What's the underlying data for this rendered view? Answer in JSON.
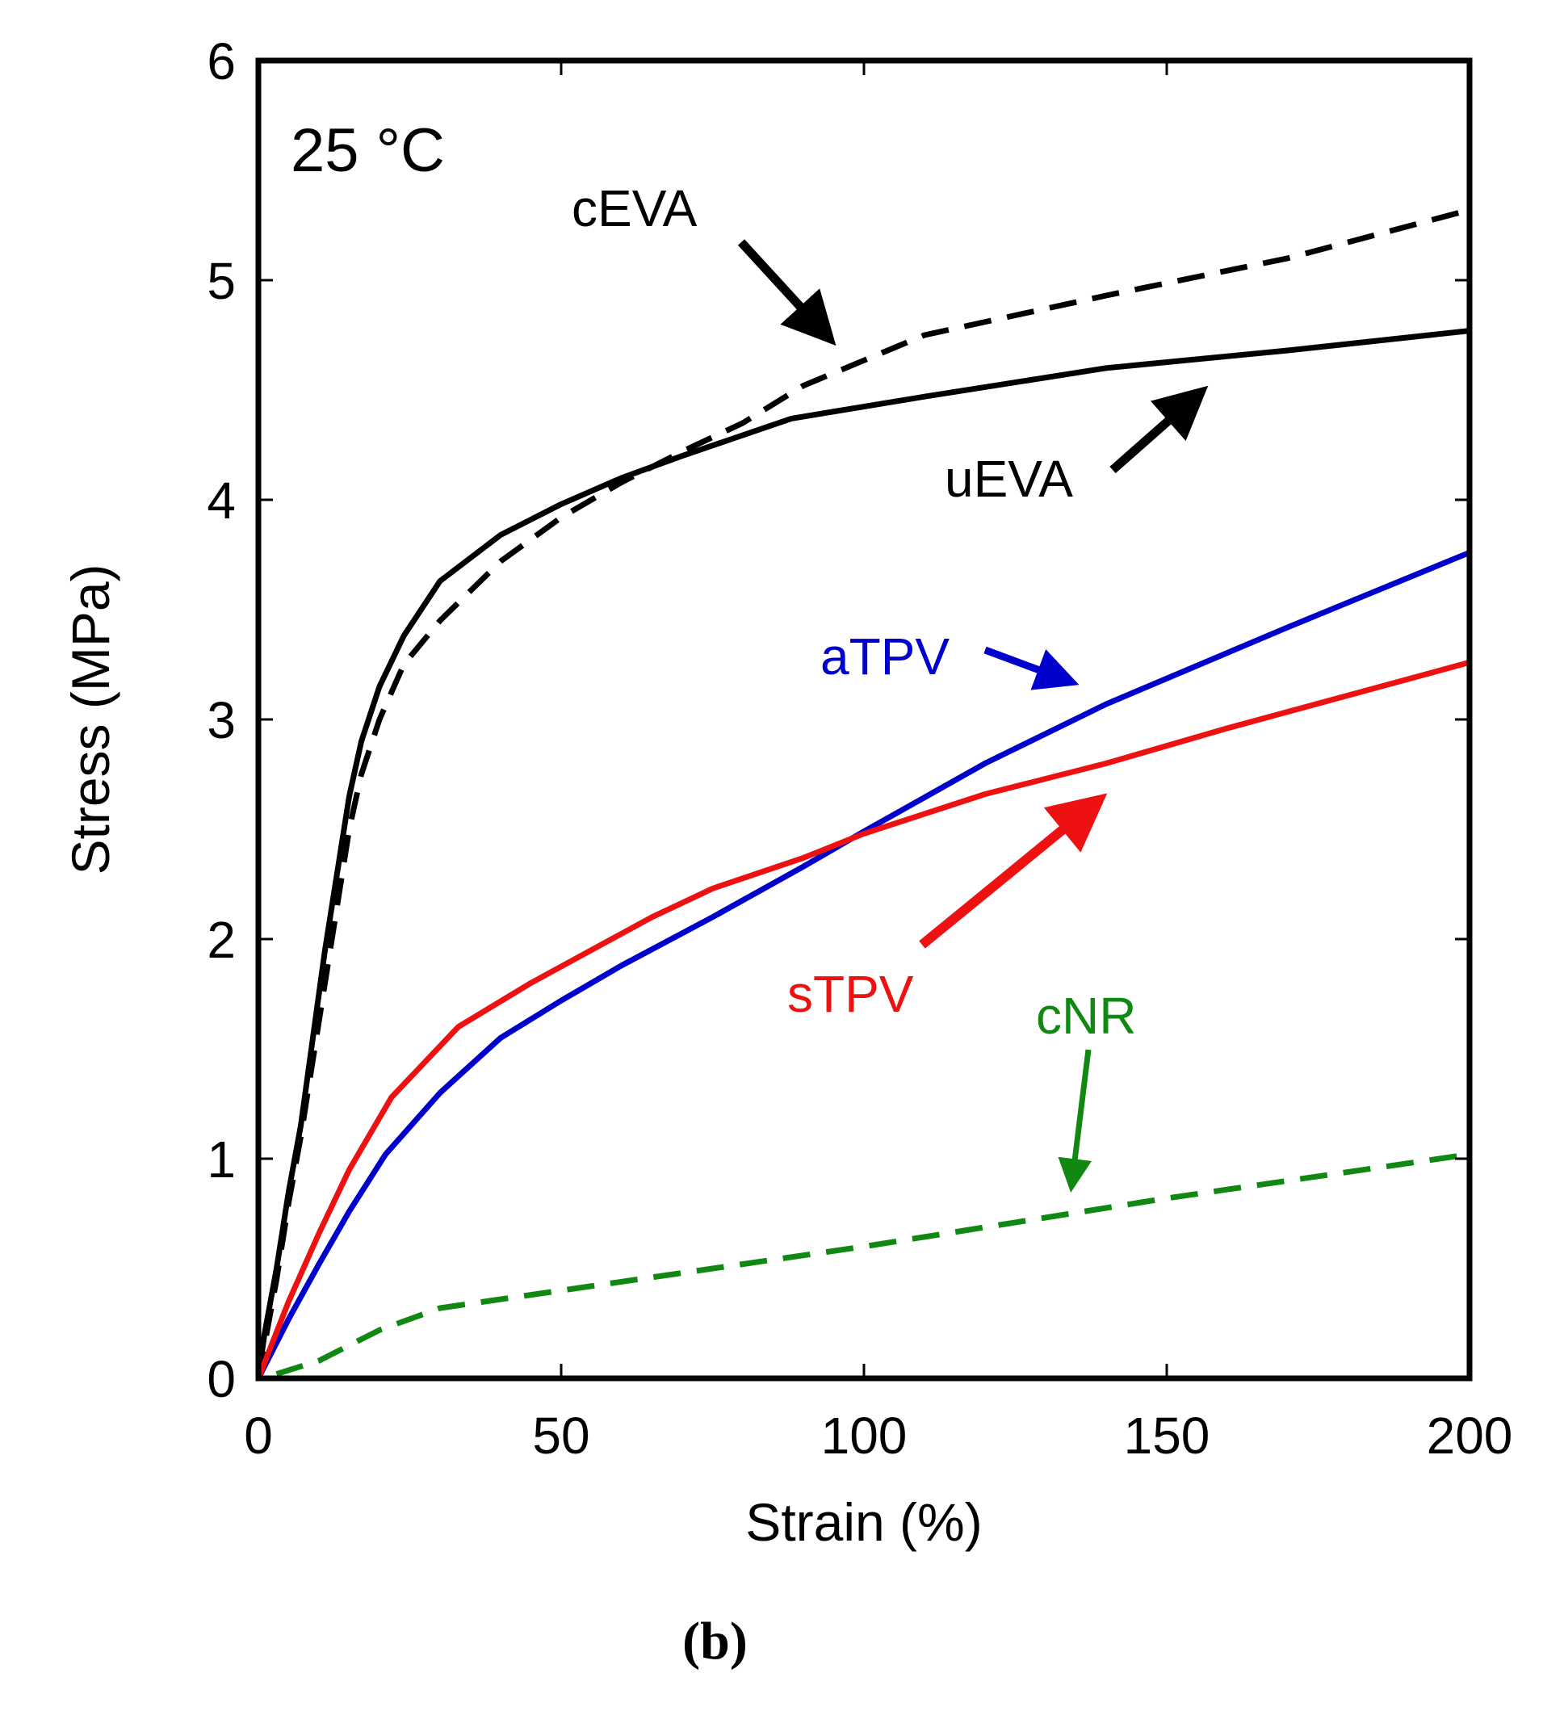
{
  "chart_data": {
    "type": "line",
    "title": "",
    "xlabel": "Strain (%)",
    "ylabel": "Stress (MPa)",
    "xlim": [
      0,
      200
    ],
    "ylim": [
      0,
      6
    ],
    "xticks": [
      0,
      50,
      100,
      150,
      200
    ],
    "yticks": [
      0,
      1,
      2,
      3,
      4,
      5,
      6
    ],
    "xtick_labels": [
      "0",
      "50",
      "100",
      "150",
      "200"
    ],
    "ytick_labels": [
      "0",
      "1",
      "2",
      "3",
      "4",
      "5",
      "6"
    ],
    "grid": false,
    "temperature_label": "25 °C",
    "panel_label": "(b)",
    "series": [
      {
        "name": "uEVA",
        "color": "#000000",
        "style": "solid",
        "x": [
          0,
          1,
          3,
          5,
          7,
          9,
          11,
          13,
          15,
          17,
          20,
          24,
          30,
          40,
          50,
          60,
          70,
          88,
          110,
          140,
          170,
          200
        ],
        "y": [
          0,
          0.2,
          0.5,
          0.85,
          1.15,
          1.55,
          1.95,
          2.3,
          2.65,
          2.9,
          3.15,
          3.38,
          3.63,
          3.84,
          3.98,
          4.1,
          4.2,
          4.37,
          4.47,
          4.6,
          4.68,
          4.77
        ]
      },
      {
        "name": "cEVA",
        "color": "#000000",
        "style": "dashed",
        "x": [
          0,
          1,
          3,
          5,
          7,
          9,
          11,
          13,
          15,
          17,
          20,
          24,
          30,
          40,
          50,
          60,
          70,
          80,
          90,
          110,
          140,
          170,
          200
        ],
        "y": [
          0,
          0.15,
          0.45,
          0.8,
          1.1,
          1.45,
          1.8,
          2.15,
          2.5,
          2.75,
          3.0,
          3.25,
          3.45,
          3.72,
          3.92,
          4.08,
          4.22,
          4.35,
          4.52,
          4.75,
          4.93,
          5.1,
          5.32
        ]
      },
      {
        "name": "aTPV",
        "color": "#0000cc",
        "style": "solid",
        "x": [
          0,
          5,
          10,
          15,
          21,
          30,
          40,
          50,
          60,
          75,
          90,
          100,
          120,
          140,
          170,
          200
        ],
        "y": [
          0,
          0.27,
          0.52,
          0.76,
          1.02,
          1.3,
          1.55,
          1.72,
          1.88,
          2.1,
          2.33,
          2.49,
          2.8,
          3.07,
          3.42,
          3.76
        ]
      },
      {
        "name": "sTPV",
        "color": "#ee1111",
        "style": "solid",
        "x": [
          0,
          5,
          10,
          15,
          22,
          33,
          45,
          55,
          65,
          75,
          90,
          100,
          120,
          140,
          160,
          180,
          200
        ],
        "y": [
          0,
          0.35,
          0.66,
          0.95,
          1.28,
          1.6,
          1.8,
          1.95,
          2.1,
          2.23,
          2.37,
          2.48,
          2.66,
          2.8,
          2.96,
          3.11,
          3.26
        ]
      },
      {
        "name": "cNR",
        "color": "#118811",
        "style": "dashed",
        "x": [
          3,
          10,
          20,
          30,
          50,
          75,
          100,
          125,
          150,
          175,
          200
        ],
        "y": [
          0.02,
          0.08,
          0.22,
          0.32,
          0.4,
          0.5,
          0.6,
          0.71,
          0.82,
          0.92,
          1.02
        ]
      }
    ],
    "annotations": [
      {
        "text": "cEVA",
        "color": "#000000",
        "arrow_target": {
          "x": 95,
          "y": 4.7
        }
      },
      {
        "text": "uEVA",
        "color": "#000000",
        "arrow_target": {
          "x": 157,
          "y": 4.55
        }
      },
      {
        "text": "aTPV",
        "color": "#0000cc",
        "arrow_target": {
          "x": 136,
          "y": 3.1
        }
      },
      {
        "text": "sTPV",
        "color": "#ee1111",
        "arrow_target": {
          "x": 140,
          "y": 2.65
        }
      },
      {
        "text": "cNR",
        "color": "#118811",
        "arrow_target": {
          "x": 134,
          "y": 0.85
        }
      }
    ]
  }
}
